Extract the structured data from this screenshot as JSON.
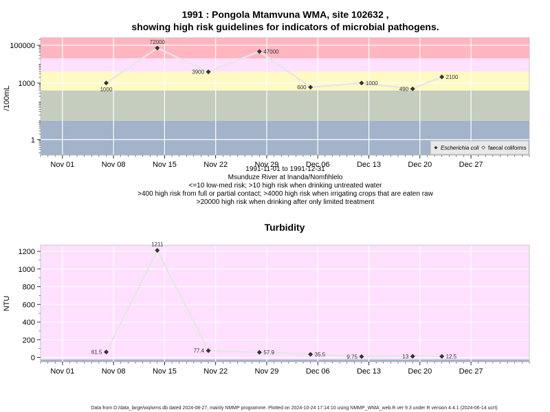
{
  "colors": {
    "band_red": "#ffb6c1",
    "band_pink": "#ffe0ff",
    "band_yellow": "#fff9c4",
    "band_green": "#c5cdbf",
    "band_blue": "#a3b3c9",
    "grid": "#ffffff",
    "line": "#e6e6e6",
    "point": "#333333"
  },
  "microbial": {
    "title_line1": "1991 : Pongola Mtamvuna WMA, site 102632 ,",
    "title_line2": "showing high risk guidelines for indicators of microbial pathogens.",
    "ylabel": "/100mL",
    "notes": [
      "1991-11-01 to 1991-12-31",
      "Msunduze River at Inanda/Nomfihlelo",
      "<=10 low-med risk; >10 high risk when drinking untreated water",
      ">400 high risk from full or partial contact; >4000 high risk when irrigating crops that are eaten raw",
      ">20000 high risk when drinking after only limited treatment"
    ],
    "legend": [
      "Escherichia coli",
      "faecal coliforms"
    ]
  },
  "turbidity": {
    "title": "Turbidity",
    "ylabel": "NTU"
  },
  "footer": "Data from D:/data_large/wq/wms.db dated 2024-08-27, mainly NMMP programme. Plotted on 2024-10-24 17:14:10 using NMMP_WMA_web.R ver 9.3 under R version 4.4.1 (2024-06-14 ucrt)",
  "chart_data": [
    {
      "type": "line",
      "scale": "log",
      "title": "1991 : Pongola Mtamvuna WMA, site 102632 , showing high risk guidelines for indicators of microbial pathogens.",
      "ylabel": "/100mL",
      "x_ticks": [
        "Nov 01",
        "Nov 08",
        "Nov 15",
        "Nov 22",
        "Nov 29",
        "Dec 06",
        "Dec 13",
        "Dec 20",
        "Dec 27"
      ],
      "y_ticks": [
        1,
        1000,
        100000
      ],
      "xlim": [
        "1991-10-29",
        "1992-01-04"
      ],
      "ylim": [
        0.15,
        250000
      ],
      "guideline_bands": [
        {
          "from": 20000,
          "to": 250000,
          "color": "#ffb6c1"
        },
        {
          "from": 4000,
          "to": 20000,
          "color": "#ffe0ff"
        },
        {
          "from": 400,
          "to": 4000,
          "color": "#fff9c4"
        },
        {
          "from": 10,
          "to": 400,
          "color": "#c5cdbf"
        },
        {
          "from": 0.15,
          "to": 10,
          "color": "#a3b3c9"
        }
      ],
      "series": [
        {
          "name": "Escherichia coli",
          "x": [
            "1991-11-07",
            "1991-11-14",
            "1991-11-21",
            "1991-11-28",
            "1991-12-05",
            "1991-12-12",
            "1991-12-19",
            "1991-12-23"
          ],
          "values": [
            1000,
            72000,
            3900,
            47000,
            600,
            1000,
            490,
            2100
          ],
          "labels": [
            "1000",
            "72000",
            "3900",
            "47000",
            "600",
            "1000",
            "490",
            "2100"
          ]
        }
      ]
    },
    {
      "type": "line",
      "title": "Turbidity",
      "ylabel": "NTU",
      "x_ticks": [
        "Nov 01",
        "Nov 08",
        "Nov 15",
        "Nov 22",
        "Nov 29",
        "Dec 06",
        "Dec 13",
        "Dec 20",
        "Dec 27"
      ],
      "y_ticks": [
        0,
        200,
        400,
        600,
        800,
        1000,
        1200
      ],
      "xlim": [
        "1991-10-29",
        "1992-01-04"
      ],
      "ylim": [
        -50,
        1270
      ],
      "series": [
        {
          "name": "Turbidity",
          "x": [
            "1991-11-07",
            "1991-11-14",
            "1991-11-21",
            "1991-11-28",
            "1991-12-05",
            "1991-12-12",
            "1991-12-19",
            "1991-12-23"
          ],
          "values": [
            61.5,
            1211,
            77.4,
            57.9,
            35.5,
            9.75,
            13,
            12.5
          ],
          "labels": [
            "61.5",
            "1211",
            "77.4",
            "57.9",
            "35.5",
            "9.75",
            "13",
            "12.5"
          ]
        }
      ]
    }
  ]
}
